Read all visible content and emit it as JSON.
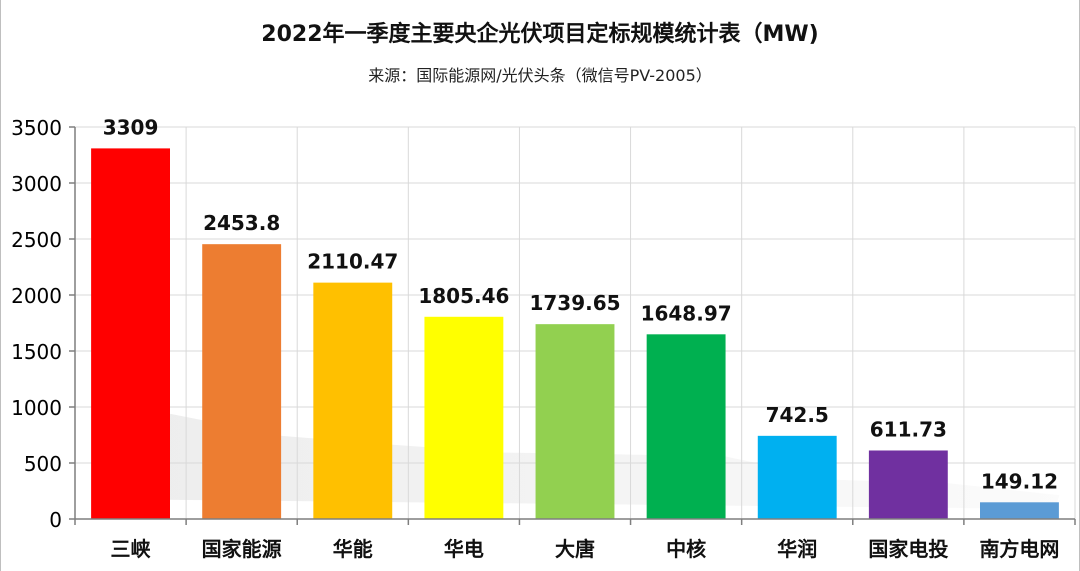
{
  "chart_data": {
    "type": "bar",
    "title": "2022年一季度主要央企光伏项目定标规模统计表（MW)",
    "subtitle": "来源：国际能源网/光伏头条（微信号PV-2005）",
    "categories": [
      "三峡",
      "国家能源",
      "华能",
      "华电",
      "大唐",
      "中核",
      "华润",
      "国家电投",
      "南方电网"
    ],
    "values": [
      3309,
      2453.8,
      2110.47,
      1805.46,
      1739.65,
      1648.97,
      742.5,
      611.73,
      149.12
    ],
    "value_labels": [
      "3309",
      "2453.8",
      "2110.47",
      "1805.46",
      "1739.65",
      "1648.97",
      "742.5",
      "611.73",
      "149.12"
    ],
    "colors": [
      "#ff0000",
      "#ed7d31",
      "#ffc000",
      "#ffff00",
      "#92d050",
      "#00b050",
      "#00b0f0",
      "#7030a0",
      "#5b9bd5"
    ],
    "ylim": [
      0,
      3500
    ],
    "yticks": [
      0,
      500,
      1000,
      1500,
      2000,
      2500,
      3000,
      3500
    ],
    "grid": true,
    "xlabel": "",
    "ylabel": ""
  }
}
